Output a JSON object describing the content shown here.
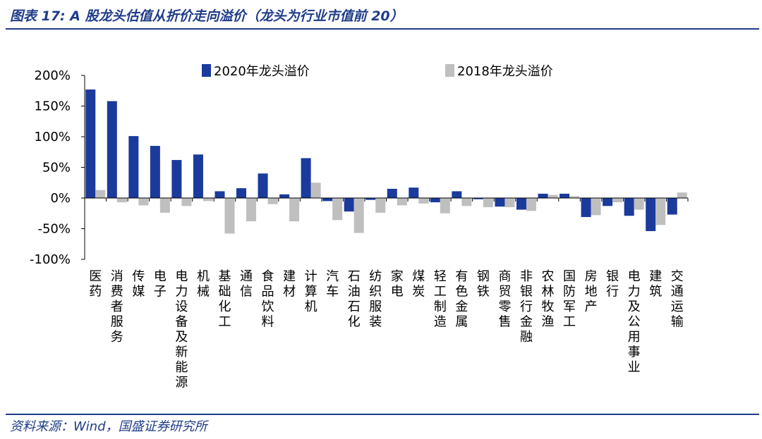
{
  "header": {
    "title": "图表 17:  A 股龙头估值从折价走向溢价（龙头为行业市值前 20）"
  },
  "footer": {
    "source": "资料来源：Wind，国盛证券研究所"
  },
  "colors": {
    "series_2020": "#1a3a9c",
    "series_2018": "#bfbfbf",
    "rule": "#1f3c88"
  },
  "chart_data": {
    "type": "bar",
    "title": "",
    "xlabel": "",
    "ylabel": "",
    "ylim": [
      -100,
      200
    ],
    "yticks": [
      200,
      150,
      100,
      50,
      0,
      -50,
      -100
    ],
    "ytick_labels": [
      "200%",
      "150%",
      "100%",
      "50%",
      "0%",
      "-50%",
      "-100%"
    ],
    "legend_position": "top",
    "categories": [
      "医药",
      "消费者服务",
      "传媒",
      "电子",
      "电力设备及新能源",
      "机械",
      "基础化工",
      "通信",
      "食品饮料",
      "建材",
      "计算机",
      "汽车",
      "石油石化",
      "纺织服装",
      "家电",
      "煤炭",
      "轻工制造",
      "有色金属",
      "钢铁",
      "商贸零售",
      "非银行金融",
      "农林牧渔",
      "国防军工",
      "房地产",
      "银行",
      "电力及公用事业",
      "建筑",
      "交通运输"
    ],
    "series": [
      {
        "name": "2020年龙头溢价",
        "values": [
          177,
          158,
          101,
          85,
          62,
          71,
          11,
          16,
          40,
          6,
          65,
          -5,
          -22,
          -3,
          15,
          17,
          -7,
          11,
          -2,
          -14,
          -19,
          7,
          7,
          -31,
          -13,
          -29,
          -54,
          -27
        ]
      },
      {
        "name": "2018年龙头溢价",
        "values": [
          13,
          -7,
          -12,
          -24,
          -13,
          -5,
          -58,
          -38,
          -10,
          -38,
          25,
          -36,
          -57,
          -24,
          -12,
          -9,
          -25,
          -13,
          -15,
          -15,
          -21,
          5,
          3,
          -28,
          -7,
          -19,
          -44,
          9
        ]
      }
    ]
  }
}
